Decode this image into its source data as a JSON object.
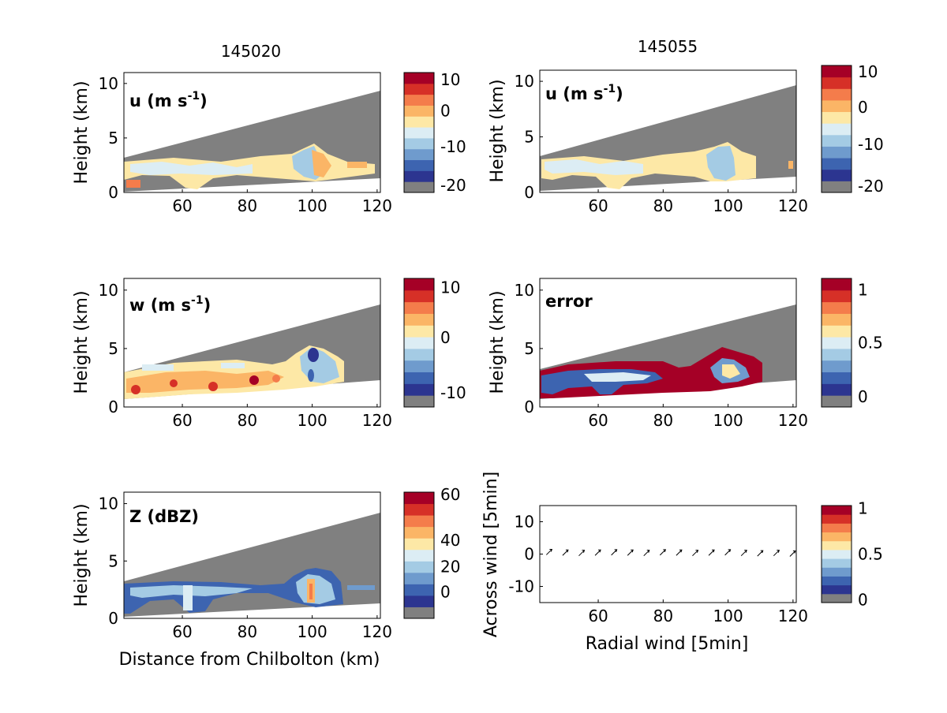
{
  "figure": {
    "column_titles": [
      "145020",
      "145055"
    ]
  },
  "colorscale": [
    "#808080",
    "#2c3590",
    "#3d64b0",
    "#6f9bcd",
    "#a4cbe4",
    "#dcedf4",
    "#fde8a6",
    "#fbb566",
    "#f47c4b",
    "#d63027",
    "#a50026"
  ],
  "chart_data": [
    {
      "type": "heatmap",
      "panel": "u-145020",
      "column_title": "145020",
      "inner_label": "u (m s",
      "inner_label_sup": "-1",
      "inner_label_end": ")",
      "ylabel": "Height (km)",
      "xlabel": "",
      "xlim": [
        42,
        121
      ],
      "ylim": [
        0,
        11
      ],
      "xticks": [
        "60",
        "80",
        "100",
        "120"
      ],
      "yticks": [
        "0",
        "5",
        "10"
      ],
      "colorbar_ticks": [
        "10",
        "0",
        "-10",
        "-20"
      ],
      "beam_top": [
        [
          42,
          3.2
        ],
        [
          121,
          9.4
        ]
      ],
      "beam_bottom": [
        [
          42,
          0.05
        ],
        [
          121,
          1.3
        ]
      ],
      "field": "data-filled cloud region between ~1.0 and 4.3 km"
    },
    {
      "type": "heatmap",
      "panel": "u-145055",
      "column_title": "145055",
      "inner_label": "u (m s",
      "inner_label_sup": "-1",
      "inner_label_end": ")",
      "ylabel": "Height (km)",
      "xlabel": "",
      "xlim": [
        42,
        121
      ],
      "ylim": [
        0,
        11
      ],
      "xticks": [
        "60",
        "80",
        "100",
        "120"
      ],
      "yticks": [
        "0",
        "5",
        "10"
      ],
      "colorbar_ticks": [
        "10",
        "0",
        "-10",
        "-20"
      ],
      "beam_top": [
        [
          42,
          3.2
        ],
        [
          121,
          9.4
        ]
      ],
      "beam_bottom": [
        [
          42,
          0.05
        ],
        [
          121,
          1.3
        ]
      ],
      "field": "data-filled cloud region between ~1.0 and 4.3 km"
    },
    {
      "type": "heatmap",
      "panel": "w-145020",
      "inner_label": "w (m s",
      "inner_label_sup": "-1",
      "inner_label_end": ")",
      "ylabel": "Height (km)",
      "xlabel": "",
      "xlim": [
        42,
        121
      ],
      "ylim": [
        0,
        11
      ],
      "xticks": [
        "60",
        "80",
        "100",
        "120"
      ],
      "yticks": [
        "0",
        "5",
        "10"
      ],
      "colorbar_ticks": [
        "10",
        "0",
        "-10"
      ],
      "beam_top": [
        [
          42,
          2.6
        ],
        [
          121,
          8.7
        ]
      ],
      "beam_bottom": [
        [
          42,
          0.6
        ],
        [
          121,
          2.1
        ]
      ],
      "field": "vertical velocity, mostly small with updraft cores"
    },
    {
      "type": "heatmap",
      "panel": "error",
      "inner_label": "error",
      "ylabel": "Height (km)",
      "xlabel": "",
      "xlim": [
        42,
        121
      ],
      "ylim": [
        0,
        11
      ],
      "xticks": [
        "60",
        "80",
        "100",
        "120"
      ],
      "yticks": [
        "0",
        "5",
        "10"
      ],
      "colorbar_ticks": [
        "1",
        "0.5",
        "0"
      ],
      "beam_top": [
        [
          42,
          2.6
        ],
        [
          121,
          8.7
        ]
      ],
      "beam_bottom": [
        [
          42,
          0.6
        ],
        [
          121,
          2.1
        ]
      ],
      "field": "error high (~1) at cloud edges, low inside"
    },
    {
      "type": "heatmap",
      "panel": "Z",
      "inner_label": "Z (dBZ)",
      "ylabel": "Height (km)",
      "xlabel": "Distance from Chilbolton (km)",
      "xlim": [
        42,
        121
      ],
      "ylim": [
        0,
        11
      ],
      "xticks": [
        "60",
        "80",
        "100",
        "120"
      ],
      "yticks": [
        "0",
        "5",
        "10"
      ],
      "colorbar_ticks": [
        "60",
        "40",
        "20",
        "0"
      ],
      "beam_top": [
        [
          42,
          3.2
        ],
        [
          121,
          9.4
        ]
      ],
      "beam_bottom": [
        [
          42,
          0.05
        ],
        [
          121,
          1.3
        ]
      ],
      "field": "reflectivity mostly 0-20 dBZ, core near 100 km"
    },
    {
      "type": "scatter",
      "panel": "vectors",
      "xlabel": "Radial wind [5min]",
      "ylabel": "Across wind [5min]",
      "xlim": [
        42,
        121
      ],
      "ylim": [
        -15,
        15
      ],
      "xticks": [
        "60",
        "80",
        "100",
        "120"
      ],
      "yticks": [
        "10",
        "0",
        "-10"
      ],
      "colorbar_ticks": [
        "1",
        "0.5",
        "0"
      ],
      "x": [
        45,
        50,
        55,
        60,
        65,
        70,
        75,
        80,
        85,
        90,
        95,
        100,
        105,
        110,
        115,
        120
      ],
      "y": [
        0.5,
        0.3,
        0.2,
        0.3,
        0.4,
        0.3,
        0.2,
        0.4,
        0.3,
        0.2,
        0.3,
        0.4,
        0.2,
        0.1,
        0.2,
        0.0
      ]
    }
  ]
}
